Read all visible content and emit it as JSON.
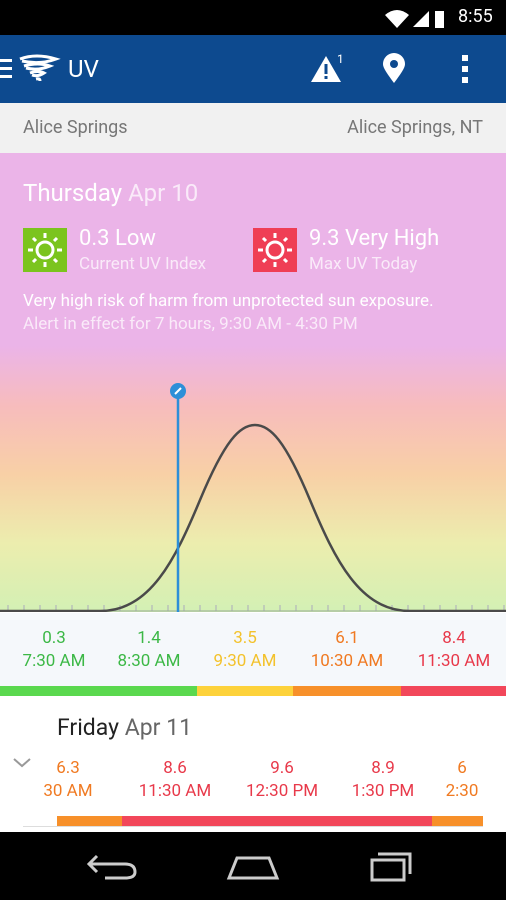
{
  "status_bar": {
    "time": "8:55"
  },
  "app_bar": {
    "title": "UV",
    "alert_count": 1
  },
  "location_bar": {
    "city": "Alice Springs",
    "region": "Alice Springs, NT"
  },
  "today": {
    "day": "Thursday",
    "date": "Apr 10",
    "current": {
      "value": 0.3,
      "level": "Low",
      "label": "Current UV Index"
    },
    "max": {
      "value": 9.3,
      "level": "Very High",
      "label": "Max UV Today"
    },
    "alert": {
      "headline": "Very high risk of harm from unprotected sun exposure.",
      "detail": "Alert in effect for 7 hours, 9:30 AM - 4:30 PM"
    },
    "hourly": [
      {
        "uv": 0.3,
        "time": "7:30 AM"
      },
      {
        "uv": 1.4,
        "time": "8:30 AM"
      },
      {
        "uv": 3.5,
        "time": "9:30 AM"
      },
      {
        "uv": 6.1,
        "time": "10:30 AM"
      },
      {
        "uv": 8.4,
        "time": "11:30 AM"
      }
    ]
  },
  "forecast": [
    {
      "day": "Friday",
      "date": "Apr 11",
      "hourly": [
        {
          "uv": 6.3,
          "time": "30 AM"
        },
        {
          "uv": 8.6,
          "time": "11:30 AM"
        },
        {
          "uv": 9.6,
          "time": "12:30 PM"
        },
        {
          "uv": 8.9,
          "time": "1:30 PM"
        },
        {
          "uv": 6,
          "time": "2:30"
        }
      ]
    }
  ]
}
